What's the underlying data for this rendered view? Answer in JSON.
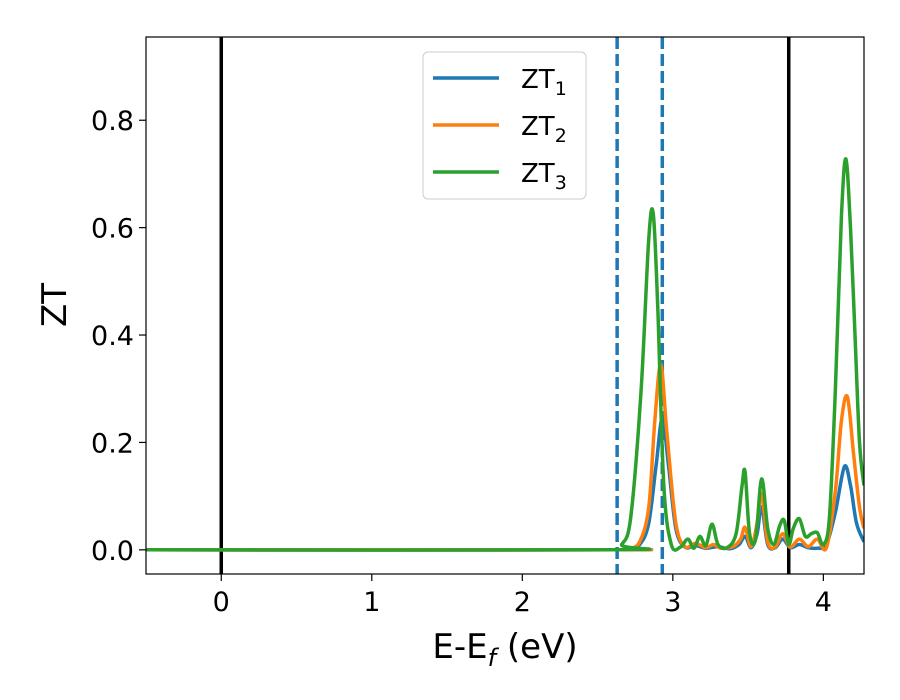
{
  "chart_data": {
    "type": "line",
    "xlabel": "E-E",
    "xlabel_subscript": "f",
    "xlabel_suffix": " (eV)",
    "ylabel": "ZT",
    "xlim": [
      -0.5,
      4.27
    ],
    "ylim": [
      -0.045,
      0.955
    ],
    "xticks": [
      0,
      1,
      2,
      3,
      4
    ],
    "yticks": [
      0.0,
      0.2,
      0.4,
      0.6,
      0.8
    ],
    "xtick_labels": [
      "0",
      "1",
      "2",
      "3",
      "4"
    ],
    "ytick_labels": [
      "0.0",
      "0.2",
      "0.4",
      "0.6",
      "0.8"
    ],
    "grid": false,
    "legend_position": "top-center",
    "vertical_lines": [
      {
        "x": 0.0,
        "style": "solid",
        "color": "#000000"
      },
      {
        "x": 2.63,
        "style": "dashed",
        "color": "#1f77b4"
      },
      {
        "x": 2.93,
        "style": "dashed",
        "color": "#1f77b4"
      },
      {
        "x": 3.77,
        "style": "solid",
        "color": "#000000"
      }
    ],
    "series": [
      {
        "name": "ZT",
        "subscript": "1",
        "color": "#1f77b4",
        "x": [
          -0.5,
          2.6,
          2.7,
          2.78,
          2.84,
          2.89,
          2.93,
          2.97,
          3.02,
          3.08,
          3.15,
          3.22,
          3.3,
          3.38,
          3.44,
          3.48,
          3.52,
          3.56,
          3.59,
          3.63,
          3.68,
          3.73,
          3.78,
          3.84,
          3.9,
          3.96,
          4.02,
          4.08,
          4.14,
          4.18,
          4.22,
          4.27
        ],
        "y": [
          0.0,
          0.0,
          0.002,
          0.01,
          0.05,
          0.16,
          0.245,
          0.16,
          0.04,
          0.005,
          0.008,
          0.003,
          0.006,
          0.002,
          0.01,
          0.025,
          0.004,
          0.03,
          0.08,
          0.01,
          0.004,
          0.02,
          0.004,
          0.01,
          0.004,
          0.003,
          0.01,
          0.07,
          0.155,
          0.12,
          0.05,
          0.015
        ]
      },
      {
        "name": "ZT",
        "subscript": "2",
        "color": "#ff7f0e",
        "x": [
          -0.5,
          2.6,
          2.7,
          2.78,
          2.84,
          2.88,
          2.92,
          2.96,
          3.02,
          3.08,
          3.15,
          3.22,
          3.27,
          3.32,
          3.4,
          3.45,
          3.48,
          3.52,
          3.56,
          3.59,
          3.63,
          3.68,
          3.73,
          3.78,
          3.84,
          3.9,
          3.96,
          4.02,
          4.08,
          4.12,
          4.16,
          4.2,
          4.24,
          4.27
        ],
        "y": [
          0.0,
          0.0,
          0.002,
          0.015,
          0.08,
          0.24,
          0.345,
          0.22,
          0.05,
          0.006,
          0.012,
          0.004,
          0.01,
          0.003,
          0.006,
          0.02,
          0.042,
          0.006,
          0.05,
          0.105,
          0.015,
          0.005,
          0.03,
          0.005,
          0.02,
          0.006,
          0.02,
          0.004,
          0.11,
          0.24,
          0.285,
          0.18,
          0.08,
          0.04
        ]
      },
      {
        "name": "ZT",
        "subscript": "3",
        "color": "#2ca02c",
        "x": [
          -0.5,
          2.6,
          2.66,
          2.72,
          2.79,
          2.84,
          2.87,
          2.9,
          2.94,
          2.99,
          3.05,
          3.1,
          3.14,
          3.18,
          3.22,
          3.26,
          3.3,
          3.36,
          3.42,
          3.46,
          3.48,
          3.51,
          3.55,
          3.59,
          3.63,
          3.67,
          3.71,
          3.74,
          3.77,
          3.8,
          3.84,
          3.88,
          3.92,
          3.96,
          4.0,
          4.04,
          4.08,
          4.12,
          4.15,
          4.18,
          4.21,
          4.24,
          4.27
        ],
        "y": [
          0.0,
          0.0,
          0.01,
          0.06,
          0.3,
          0.58,
          0.625,
          0.45,
          0.12,
          0.01,
          0.005,
          0.02,
          0.003,
          0.025,
          0.008,
          0.048,
          0.01,
          0.004,
          0.03,
          0.12,
          0.145,
          0.03,
          0.02,
          0.132,
          0.04,
          0.01,
          0.045,
          0.055,
          0.01,
          0.04,
          0.058,
          0.025,
          0.03,
          0.032,
          0.01,
          0.06,
          0.3,
          0.62,
          0.728,
          0.6,
          0.4,
          0.2,
          0.12
        ]
      }
    ]
  }
}
